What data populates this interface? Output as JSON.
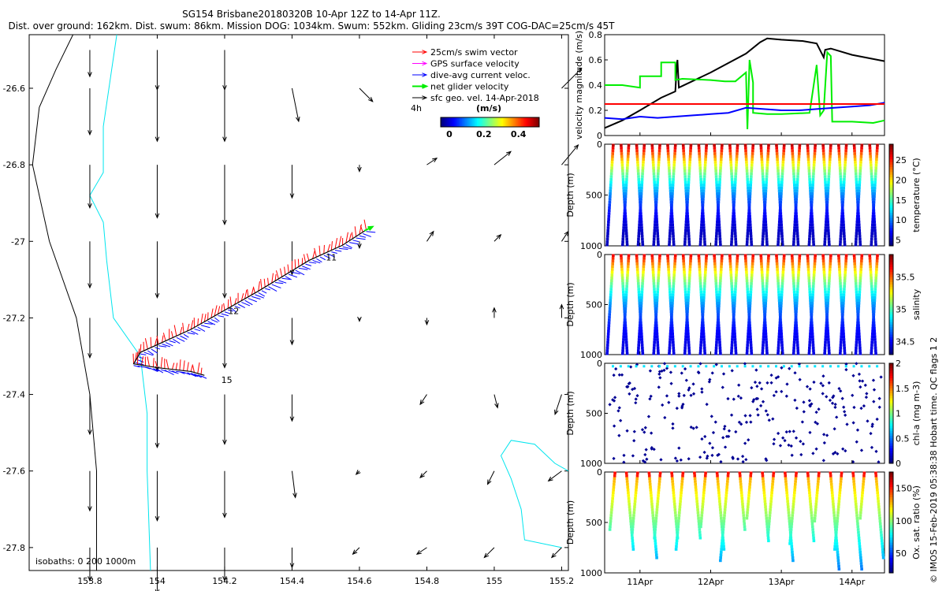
{
  "header": {
    "title": "SG154 Brisbane20180320B 10-Apr 12Z to 14-Apr 11Z.",
    "subtitle": "Dist. over ground: 162km. Dist. swum: 86km. Mission DOG: 1034km. Swum: 552km. Gliding 23cm/s 39T COG-DAC=25cm/s 45T"
  },
  "copyright": "© IMOS 15-Feb-2019 05:38:38 Hobart time. QC flags 1  2",
  "colors": {
    "swim": "#ff0000",
    "gps": "#ff00ff",
    "dac": "#0000ff",
    "net": "#00ee00",
    "geo": "#000000",
    "coast": "#00e5ee",
    "iso200": "#000000"
  },
  "chart_data": [
    {
      "type": "scatter",
      "name": "map",
      "xlim": [
        153.62,
        155.22
      ],
      "ylim": [
        -27.86,
        -26.46
      ],
      "xticks": [
        "153.8",
        "154",
        "154.2",
        "154.4",
        "154.6",
        "154.8",
        "155",
        "155.2"
      ],
      "yticks": [
        "-26.6",
        "-26.8",
        "-27",
        "-27.2",
        "-27.4",
        "-27.6",
        "-27.8"
      ],
      "legend": {
        "items": [
          "25cm/s swim vector",
          "GPS surface velocity",
          "dive-avg current veloc.",
          "net glider velocity",
          "sfc geo. vel. 14-Apr-2018"
        ],
        "time_label": "4h",
        "colorbar_label": "(m/s)",
        "colorbar_ticks": [
          "0",
          "0.2",
          "0.4"
        ],
        "colorbar_range": [
          -0.05,
          0.52
        ]
      },
      "isobath_label": "isobaths: 0    200  1000m",
      "day_labels": [
        {
          "text": "11",
          "lon": 154.5,
          "lat": -27.05
        },
        {
          "text": "12",
          "lon": 154.21,
          "lat": -27.19
        },
        {
          "text": "15",
          "lon": 154.19,
          "lat": -27.37
        }
      ],
      "track": [
        [
          154.62,
          -26.97
        ],
        [
          154.55,
          -27.01
        ],
        [
          154.45,
          -27.05
        ],
        [
          154.3,
          -27.13
        ],
        [
          154.1,
          -27.23
        ],
        [
          153.95,
          -27.29
        ],
        [
          153.93,
          -27.32
        ],
        [
          154.0,
          -27.33
        ],
        [
          154.1,
          -27.34
        ],
        [
          154.14,
          -27.35
        ]
      ],
      "geo_velocity": {
        "lons": [
          153.8,
          154.0,
          154.2,
          154.4,
          154.6,
          154.8,
          155.0,
          155.2
        ],
        "lats": [
          -26.5,
          -26.6,
          -26.8,
          -27.0,
          -27.2,
          -27.4,
          -27.6,
          -27.8
        ],
        "u": [
          [
            0,
            0,
            0,
            0,
            0,
            0,
            0,
            0
          ],
          [
            0,
            0,
            0,
            0.02,
            0.04,
            0,
            0,
            0.06
          ],
          [
            0,
            0,
            0,
            0,
            0,
            0.03,
            0.05,
            0.05
          ],
          [
            0,
            0,
            0,
            0,
            0,
            0.02,
            0.02,
            0.02
          ],
          [
            0,
            0,
            0,
            0,
            0,
            0,
            0,
            0
          ],
          [
            0,
            0,
            0,
            0,
            0,
            -0.02,
            0.01,
            -0.02
          ],
          [
            0,
            0,
            0,
            0.01,
            -0.01,
            -0.02,
            -0.02,
            -0.04
          ],
          [
            0,
            0,
            0,
            0,
            -0.02,
            -0.03,
            -0.03,
            -0.03
          ]
        ],
        "v": [
          [
            -0.08,
            -0.12,
            -0.12,
            0,
            0,
            0,
            0,
            0
          ],
          [
            -0.14,
            -0.16,
            -0.16,
            -0.1,
            -0.04,
            0,
            0,
            0.06
          ],
          [
            -0.13,
            -0.16,
            -0.18,
            -0.1,
            -0.02,
            0.02,
            0.04,
            0.06
          ],
          [
            -0.14,
            -0.17,
            -0.17,
            -0.1,
            -0.02,
            0.03,
            0.02,
            0.03
          ],
          [
            -0.12,
            -0.16,
            -0.15,
            -0.08,
            -0.01,
            -0.02,
            0.03,
            0.04
          ],
          [
            -0.12,
            -0.16,
            -0.15,
            -0.08,
            0,
            -0.03,
            -0.04,
            -0.06
          ],
          [
            -0.12,
            -0.15,
            -0.14,
            -0.08,
            -0.01,
            -0.02,
            -0.04,
            -0.03
          ],
          [
            -0.1,
            -0.14,
            -0.1,
            -0.06,
            -0.02,
            -0.02,
            -0.03,
            -0.03
          ]
        ]
      }
    },
    {
      "type": "line",
      "name": "velocity",
      "ylabel": "velocity magnitude (m/s)",
      "ylim": [
        0,
        0.8
      ],
      "yticks": [
        "0",
        "0.2",
        "0.4",
        "0.6",
        "0.8"
      ],
      "x_days": [
        10.5,
        14.46
      ],
      "series": [
        {
          "name": "GPS surface velocity",
          "color": "#000000",
          "x": [
            10.5,
            10.75,
            11.0,
            11.3,
            11.5,
            11.52,
            11.53,
            11.55,
            12.0,
            12.5,
            12.7,
            12.8,
            13.0,
            13.3,
            13.5,
            13.6,
            13.62,
            13.7,
            14.0,
            14.46
          ],
          "values": [
            0.06,
            0.12,
            0.2,
            0.3,
            0.35,
            0.55,
            0.6,
            0.38,
            0.5,
            0.65,
            0.74,
            0.77,
            0.76,
            0.75,
            0.73,
            0.62,
            0.68,
            0.69,
            0.64,
            0.59
          ]
        },
        {
          "name": "net glider velocity",
          "color": "#00ee00",
          "x": [
            10.5,
            10.5,
            10.75,
            11.0,
            11.0,
            11.3,
            11.3,
            11.5,
            11.5,
            11.6,
            12.0,
            12.2,
            12.2,
            12.35,
            12.5,
            12.52,
            12.55,
            12.6,
            12.6,
            12.8,
            13.0,
            13.4,
            13.5,
            13.55,
            13.6,
            13.65,
            13.7,
            13.72,
            14.0,
            14.3,
            14.46
          ],
          "values": [
            0.4,
            0.4,
            0.4,
            0.38,
            0.47,
            0.47,
            0.58,
            0.58,
            0.44,
            0.45,
            0.44,
            0.43,
            0.43,
            0.43,
            0.5,
            0.05,
            0.6,
            0.42,
            0.18,
            0.17,
            0.17,
            0.18,
            0.56,
            0.16,
            0.2,
            0.66,
            0.63,
            0.11,
            0.11,
            0.1,
            0.12
          ]
        },
        {
          "name": "dive-avg current veloc.",
          "color": "#0000ff",
          "x": [
            10.5,
            10.75,
            11.0,
            11.25,
            11.5,
            11.75,
            12.0,
            12.25,
            12.5,
            12.75,
            13.0,
            13.25,
            13.5,
            13.75,
            14.0,
            14.25,
            14.46
          ],
          "values": [
            0.14,
            0.13,
            0.15,
            0.14,
            0.15,
            0.16,
            0.17,
            0.18,
            0.22,
            0.21,
            0.2,
            0.2,
            0.21,
            0.22,
            0.23,
            0.24,
            0.26
          ]
        },
        {
          "name": "25cm/s swim vector",
          "color": "#ff0000",
          "x": [
            10.5,
            14.46
          ],
          "values": [
            0.25,
            0.25
          ]
        }
      ]
    },
    {
      "type": "scatter",
      "name": "temperature",
      "ylabel": "Depth (m)",
      "clabel": "temperature (°C)",
      "ylim": [
        0,
        1000
      ],
      "yticks": [
        "0",
        "500",
        "1000"
      ],
      "clim": [
        3.5,
        29
      ],
      "cticks": [
        "5",
        "10",
        "15",
        "20",
        "25"
      ],
      "profiles": 35,
      "surface_value": 28,
      "deep_value": 5
    },
    {
      "type": "scatter",
      "name": "salinity",
      "ylabel": "Depth (m)",
      "clabel": "salinity",
      "ylim": [
        0,
        1000
      ],
      "yticks": [
        "0",
        "500",
        "1000"
      ],
      "clim": [
        34.3,
        35.85
      ],
      "cticks": [
        "34.5",
        "35",
        "35.5"
      ],
      "profiles": 35,
      "surface_value": 35.7,
      "deep_value": 34.45
    },
    {
      "type": "scatter",
      "name": "chlorophyll",
      "ylabel": "Depth (m)",
      "clabel": "chl-a (mg m-3)",
      "ylim": [
        0,
        1000
      ],
      "yticks": [
        "0",
        "500",
        "1000"
      ],
      "clim": [
        0,
        2
      ],
      "cticks": [
        "0",
        "0.5",
        "1",
        "1.5",
        "2"
      ],
      "profiles": 35,
      "surface_value": 0.3,
      "deep_value": 0
    },
    {
      "type": "scatter",
      "name": "oxygen",
      "ylabel": "Depth (m)",
      "clabel": "Ox. sat. ratio (%)",
      "ylim": [
        0,
        1000
      ],
      "yticks": [
        "0",
        "500",
        "1000"
      ],
      "clim": [
        20,
        175
      ],
      "cticks": [
        "50",
        "100",
        "150"
      ],
      "profiles": 24,
      "surface_value": 95,
      "deep_value": 60,
      "xticks": [
        "11Apr",
        "12Apr",
        "13Apr",
        "14Apr"
      ],
      "xtick_days": [
        11,
        12,
        13,
        14
      ]
    }
  ]
}
